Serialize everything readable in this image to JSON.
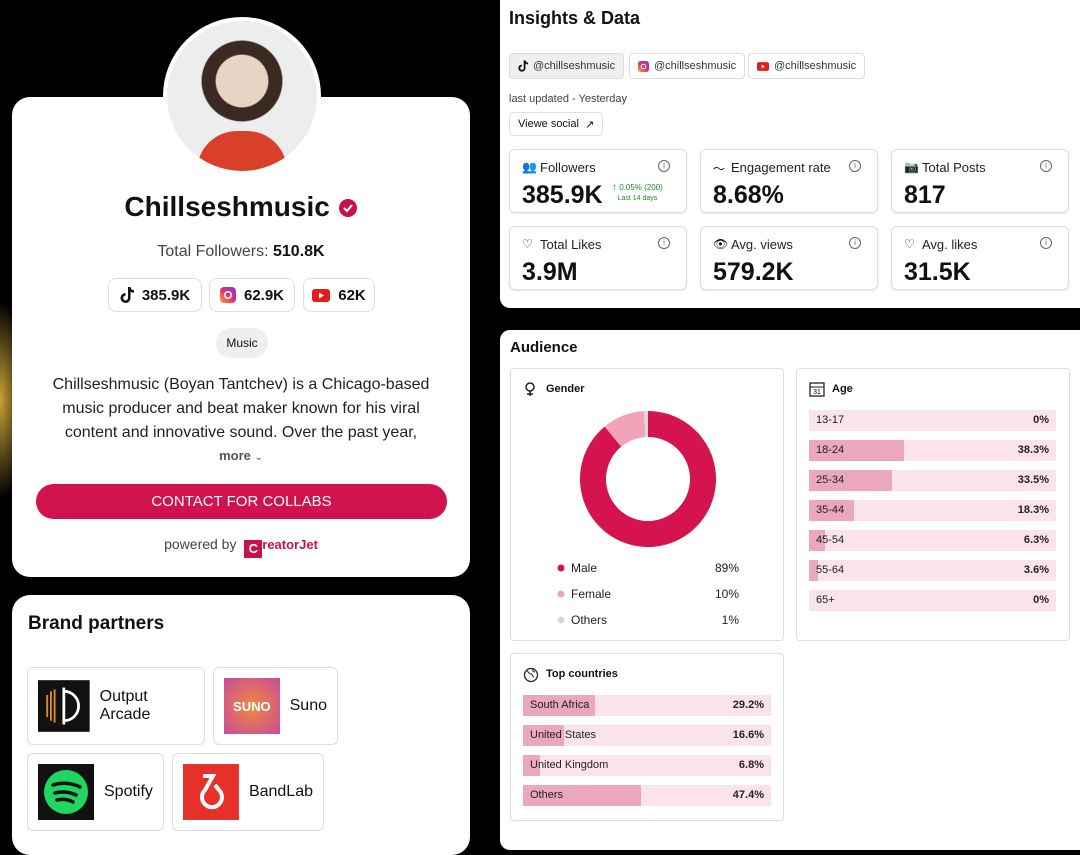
{
  "profile": {
    "name": "Chillseshmusic",
    "followers_label": "Total Followers:",
    "followers_total": "510.8K",
    "platform_counts": [
      "385.9K",
      "62.9K",
      "62K"
    ],
    "category": "Music",
    "bio": "Chillseshmusic (Boyan Tantchev) is a Chicago-based music producer and beat maker known for his viral content and innovative sound. Over the past year, his…",
    "more": "more",
    "cta": "CONTACT FOR COLLABS",
    "powered_by": "powered by",
    "brand": "reatorJet"
  },
  "brand_partners": {
    "title": "Brand partners",
    "items": [
      "Output Arcade",
      "Suno",
      "Spotify",
      "BandLab"
    ],
    "suno_logo": "SUNO"
  },
  "insights": {
    "title": "Insights & Data",
    "handles": [
      "@chillseshmusic",
      "@chillseshmusic",
      "@chillseshmusic"
    ],
    "last_updated": "last updated - Yesterday",
    "view_social": "Viewe social",
    "followers_change": "0.05% (200)",
    "followers_period": "Last 14 days",
    "stats": [
      {
        "label": "Followers",
        "value": "385.9K"
      },
      {
        "label": "Engagement rate",
        "value": "8.68%"
      },
      {
        "label": "Total Posts",
        "value": "817"
      },
      {
        "label": "Total Likes",
        "value": "3.9M"
      },
      {
        "label": "Avg. views",
        "value": "579.2K"
      },
      {
        "label": "Avg. likes",
        "value": "31.5K"
      }
    ]
  },
  "audience": {
    "title": "Audience",
    "gender": {
      "title": "Gender",
      "items": [
        {
          "name": "Male",
          "value": 89,
          "label": "89%",
          "color": "#d4134f"
        },
        {
          "name": "Female",
          "value": 10,
          "label": "10%",
          "color": "#f0a3b9"
        },
        {
          "name": "Others",
          "value": 1,
          "label": "1%",
          "color": "#d9d9d9"
        }
      ]
    },
    "age": {
      "title": "Age",
      "items": [
        {
          "name": "13-17",
          "value": 0,
          "label": "0%"
        },
        {
          "name": "18-24",
          "value": 38.3,
          "label": "38.3%"
        },
        {
          "name": "25-34",
          "value": 33.5,
          "label": "33.5%"
        },
        {
          "name": "35-44",
          "value": 18.3,
          "label": "18.3%"
        },
        {
          "name": "45-54",
          "value": 6.3,
          "label": "6.3%"
        },
        {
          "name": "55-64",
          "value": 3.6,
          "label": "3.6%"
        },
        {
          "name": "65+",
          "value": 0,
          "label": "0%"
        }
      ]
    },
    "countries": {
      "title": "Top countries",
      "items": [
        {
          "name": "South Africa",
          "value": 29.2,
          "label": "29.2%"
        },
        {
          "name": "United States",
          "value": 16.6,
          "label": "16.6%"
        },
        {
          "name": "United Kingdom",
          "value": 6.8,
          "label": "6.8%"
        },
        {
          "name": "Others",
          "value": 47.4,
          "label": "47.4%"
        }
      ]
    }
  }
}
